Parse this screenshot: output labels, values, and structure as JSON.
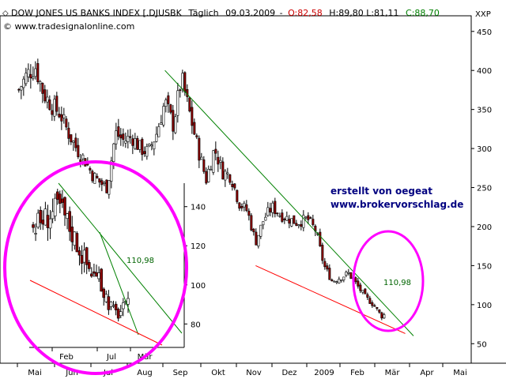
{
  "header": {
    "instrument": "DOW JONES US BANKS INDEX [.DJUSBK",
    "interval": "Täglich",
    "date": "09.03.2009",
    "open_label": "O:82,58",
    "rest_label": "H:89,80 L:81,11",
    "close_label": "C:88,70",
    "copyright": "© www.tradesignalonline.com",
    "axis_unit": "XXP"
  },
  "colors": {
    "up": "#ffffff",
    "down": "#8b0000",
    "trend_green": "#008000",
    "trend_red": "#ff0000",
    "highlight": "#ff00ff",
    "credit": "#000080",
    "annotation": "#006400"
  },
  "annotations": {
    "label_main": "110,98",
    "label_inset": "110,98",
    "credit_line1": "erstellt von oegeat",
    "credit_line2": "www.brokervorschlag.de"
  },
  "chart_data": [
    {
      "type": "candlestick",
      "title": "DOW JONES US BANKS INDEX [.DJUSBK",
      "ylim": [
        25,
        470
      ],
      "yticks": [
        50,
        100,
        150,
        200,
        250,
        300,
        350,
        400,
        450
      ],
      "x_labels": [
        "Mai",
        "Jun",
        "Jul",
        "Aug",
        "Sep",
        "Okt",
        "Nov",
        "Dez",
        "2009",
        "Feb",
        "Mär",
        "Apr",
        "Mai"
      ],
      "series_close_path": [
        [
          "2008-05-01",
          375
        ],
        [
          "2008-05-08",
          395
        ],
        [
          "2008-05-15",
          405
        ],
        [
          "2008-05-22",
          370
        ],
        [
          "2008-05-29",
          355
        ],
        [
          "2008-06-05",
          345
        ],
        [
          "2008-06-12",
          320
        ],
        [
          "2008-06-19",
          300
        ],
        [
          "2008-06-26",
          285
        ],
        [
          "2008-07-03",
          265
        ],
        [
          "2008-07-10",
          255
        ],
        [
          "2008-07-15",
          250
        ],
        [
          "2008-07-22",
          320
        ],
        [
          "2008-07-29",
          310
        ],
        [
          "2008-08-05",
          315
        ],
        [
          "2008-08-12",
          300
        ],
        [
          "2008-08-19",
          295
        ],
        [
          "2008-08-26",
          320
        ],
        [
          "2008-09-02",
          360
        ],
        [
          "2008-09-09",
          330
        ],
        [
          "2008-09-16",
          390
        ],
        [
          "2008-09-23",
          345
        ],
        [
          "2008-09-30",
          300
        ],
        [
          "2008-10-07",
          260
        ],
        [
          "2008-10-14",
          300
        ],
        [
          "2008-10-21",
          270
        ],
        [
          "2008-10-28",
          265
        ],
        [
          "2008-11-04",
          230
        ],
        [
          "2008-11-11",
          220
        ],
        [
          "2008-11-18",
          180
        ],
        [
          "2008-11-25",
          210
        ],
        [
          "2008-12-02",
          225
        ],
        [
          "2008-12-09",
          215
        ],
        [
          "2008-12-16",
          210
        ],
        [
          "2008-12-23",
          205
        ],
        [
          "2009-01-01",
          210
        ],
        [
          "2009-01-08",
          195
        ],
        [
          "2009-01-15",
          150
        ],
        [
          "2009-01-22",
          130
        ],
        [
          "2009-01-29",
          135
        ],
        [
          "2009-02-05",
          140
        ],
        [
          "2009-02-12",
          125
        ],
        [
          "2009-02-19",
          110
        ],
        [
          "2009-02-26",
          100
        ],
        [
          "2009-03-05",
          85
        ],
        [
          "2009-03-09",
          88.7
        ]
      ],
      "trendlines": [
        {
          "color": "green",
          "from": [
            "2008-09-02",
            400
          ],
          "to": [
            "2009-04-01",
            60
          ]
        },
        {
          "color": "red",
          "from": [
            "2008-11-18",
            150
          ],
          "to": [
            "2009-03-25",
            63
          ]
        }
      ]
    },
    {
      "type": "candlestick",
      "title": "",
      "ylim": [
        68,
        152
      ],
      "yticks": [
        80,
        100,
        120,
        140
      ],
      "x_labels": [
        "Feb",
        "Jul",
        "Mär"
      ]
    }
  ]
}
